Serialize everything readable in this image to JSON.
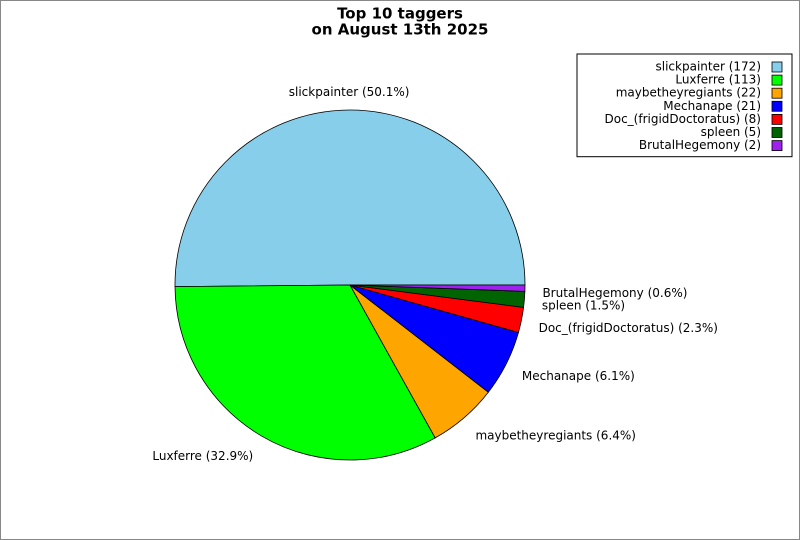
{
  "chart_data": {
    "type": "pie",
    "title": [
      "Top 10 taggers",
      "on August 13th 2025"
    ],
    "values": [
      172,
      113,
      22,
      21,
      8,
      5,
      2
    ],
    "legend_labels": [
      "slickpainter (172)",
      "Luxferre (113)",
      "maybetheyregiants (22)",
      "Mechanape (21)",
      "Doc_(frigidDoctoratus) (8)",
      "spleen (5)",
      "BrutalHegemony (2)"
    ],
    "value_labels": [
      "slickpainter (50.1%)",
      "Luxferre (32.9%)",
      "maybetheyregiants (6.4%)",
      "Mechanape (6.1%)",
      "Doc_(frigidDoctoratus) (2.3%)",
      "spleen (1.5%)",
      "BrutalHegemony (0.6%)"
    ],
    "colors": [
      "#87ceeb",
      "#00ff00",
      "#ffa500",
      "#0000ff",
      "#ff0000",
      "#006400",
      "#a020f0"
    ],
    "legend": "upper right"
  }
}
